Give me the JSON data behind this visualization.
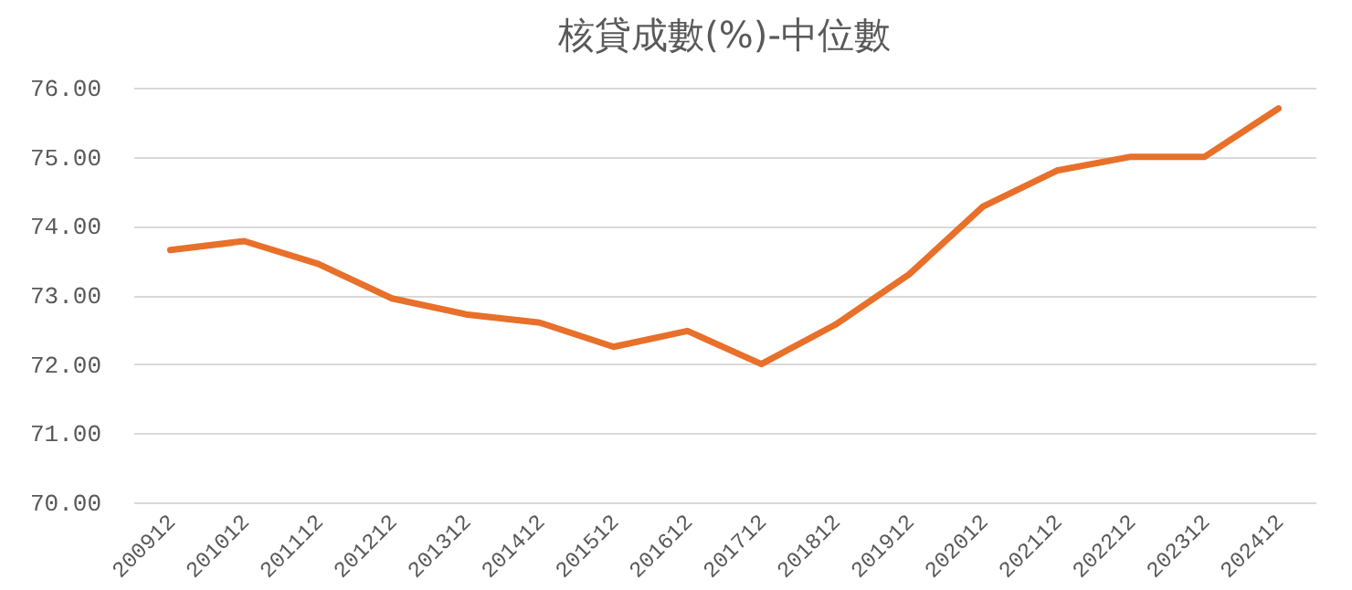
{
  "chart_data": {
    "type": "line",
    "title": "核貸成數(%)-中位數",
    "categories": [
      "200912",
      "201012",
      "201112",
      "201212",
      "201312",
      "201412",
      "201512",
      "201612",
      "201712",
      "201812",
      "201912",
      "202012",
      "202112",
      "202212",
      "202312",
      "202412"
    ],
    "series": [
      {
        "color": "#e8702a",
        "values": [
          73.65,
          73.78,
          73.45,
          72.95,
          72.72,
          72.6,
          72.25,
          72.48,
          72.0,
          72.57,
          73.3,
          74.28,
          74.8,
          75.0,
          75.0,
          75.7
        ]
      }
    ],
    "ylim": [
      70,
      76
    ],
    "yticks": [
      {
        "value": 70,
        "label": "70.00"
      },
      {
        "value": 71,
        "label": "71.00"
      },
      {
        "value": 72,
        "label": "72.00"
      },
      {
        "value": 73,
        "label": "73.00"
      },
      {
        "value": 74,
        "label": "74.00"
      },
      {
        "value": 75,
        "label": "75.00"
      },
      {
        "value": 76,
        "label": "76.00"
      }
    ],
    "grid": "y",
    "line_style": "solid"
  }
}
